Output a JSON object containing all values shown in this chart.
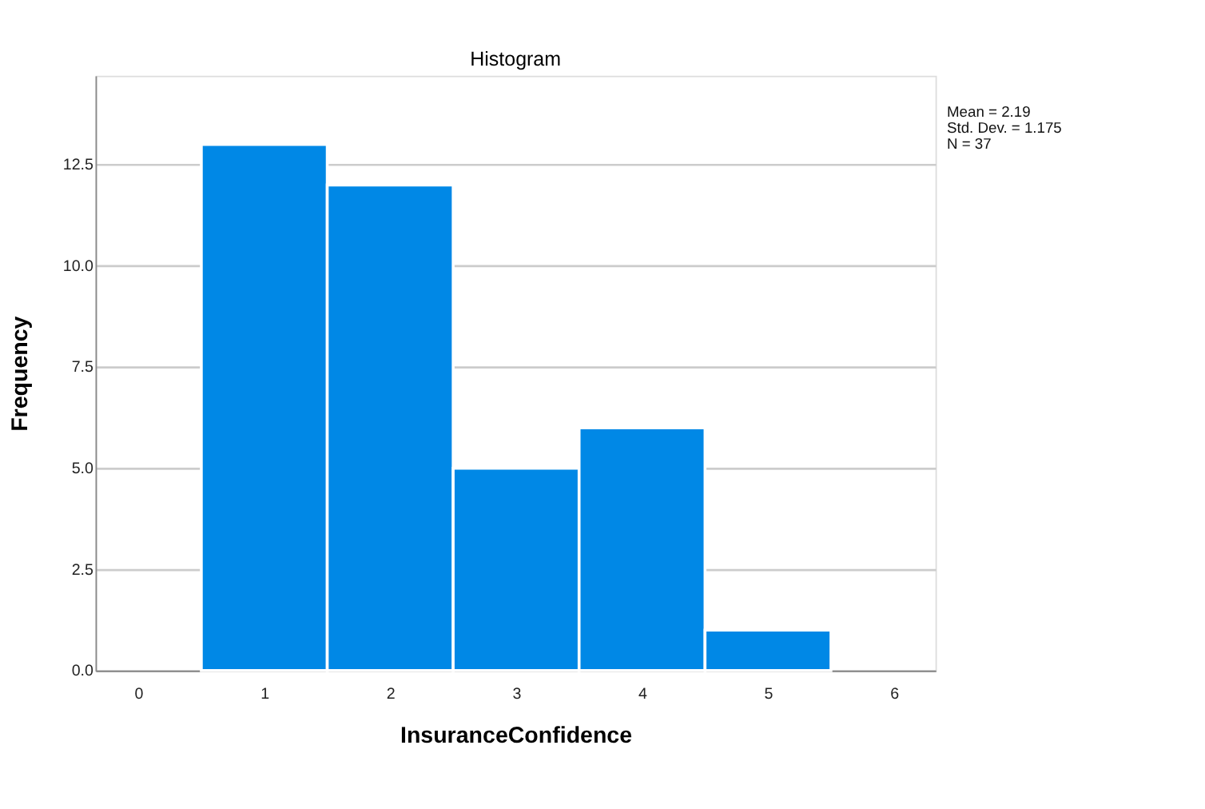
{
  "chart_data": {
    "type": "histogram",
    "title": "Histogram",
    "xlabel": "InsuranceConfidence",
    "ylabel": "Frequency",
    "bins": [
      0.5,
      1.5,
      2.5,
      3.5,
      4.5,
      5.5
    ],
    "values": [
      13,
      12,
      5,
      6,
      1
    ],
    "color": "#0088e6",
    "xlim": [
      -0.34,
      6.33
    ],
    "xticks": [
      0,
      1,
      2,
      3,
      4,
      5,
      6
    ],
    "ylim": [
      0,
      14.7
    ],
    "yticks": [
      {
        "value": 0,
        "label": "0.0"
      },
      {
        "value": 2.5,
        "label": "2.5"
      },
      {
        "value": 5,
        "label": "5.0"
      },
      {
        "value": 7.5,
        "label": "7.5"
      },
      {
        "value": 10,
        "label": "10.0"
      },
      {
        "value": 12.5,
        "label": "12.5"
      }
    ],
    "grid": "y",
    "annotations": [
      "Mean = 2.19",
      "Std. Dev. = 1.175",
      "N = 37"
    ]
  }
}
